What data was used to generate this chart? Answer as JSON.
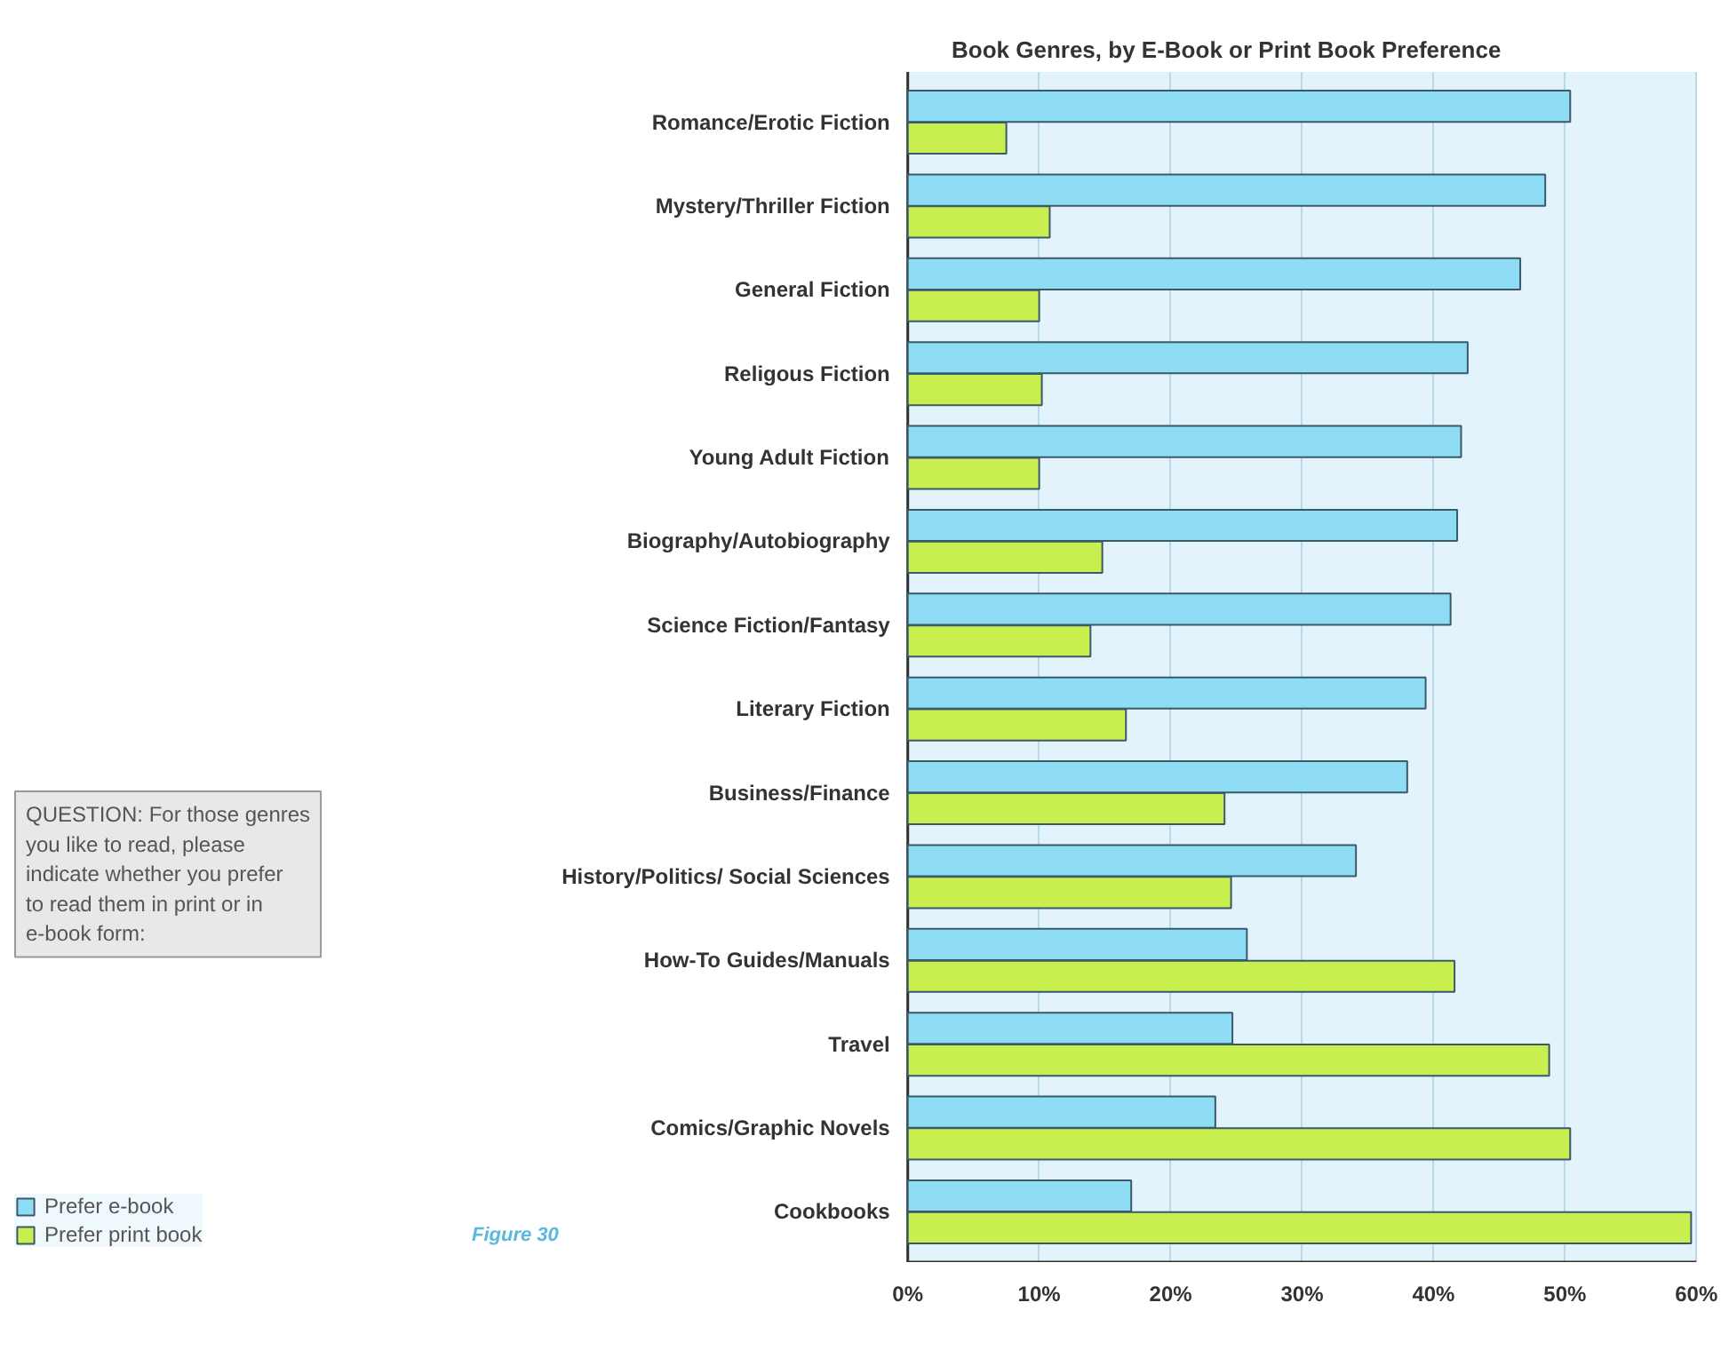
{
  "chart_data": {
    "type": "bar",
    "orientation": "horizontal",
    "title": "Book Genres, by E-Book or Print Book Preference",
    "categories": [
      "Romance/Erotic Fiction",
      "Mystery/Thriller Fiction",
      "General Fiction",
      "Religous Fiction",
      "Young Adult Fiction",
      "Biography/Autobiography",
      "Science Fiction/Fantasy",
      "Literary Fiction",
      "Business/Finance",
      "History/Politics/ Social Sciences",
      "How-To Guides/Manuals",
      "Travel",
      "Comics/Graphic Novels",
      "Cookbooks"
    ],
    "series": [
      {
        "name": "Prefer e-book",
        "color": "#8fdcf5",
        "values": [
          50.4,
          48.5,
          46.6,
          42.6,
          42.1,
          41.8,
          41.3,
          39.4,
          38.0,
          34.1,
          25.8,
          24.7,
          23.4,
          17.0
        ]
      },
      {
        "name": "Prefer print book",
        "color": "#c8ef4f",
        "values": [
          7.5,
          10.8,
          10.0,
          10.2,
          10.0,
          14.8,
          13.9,
          16.6,
          24.1,
          24.6,
          41.6,
          48.8,
          50.4,
          59.6
        ]
      }
    ],
    "xlim": [
      0,
      60
    ],
    "xticks": [
      {
        "value": 0,
        "label": "0%"
      },
      {
        "value": 10,
        "label": "10%"
      },
      {
        "value": 20,
        "label": "20%"
      },
      {
        "value": 30,
        "label": "30%"
      },
      {
        "value": 40,
        "label": "40%"
      },
      {
        "value": 50,
        "label": "50%"
      },
      {
        "value": 60,
        "label": "60%"
      }
    ],
    "grid": "x",
    "legend": "bottom left",
    "annotations": [
      "QUESTION: For those genres you like to read, please indicate whether you prefer to read them in print or in e-book form:",
      "Figure 30"
    ]
  }
}
